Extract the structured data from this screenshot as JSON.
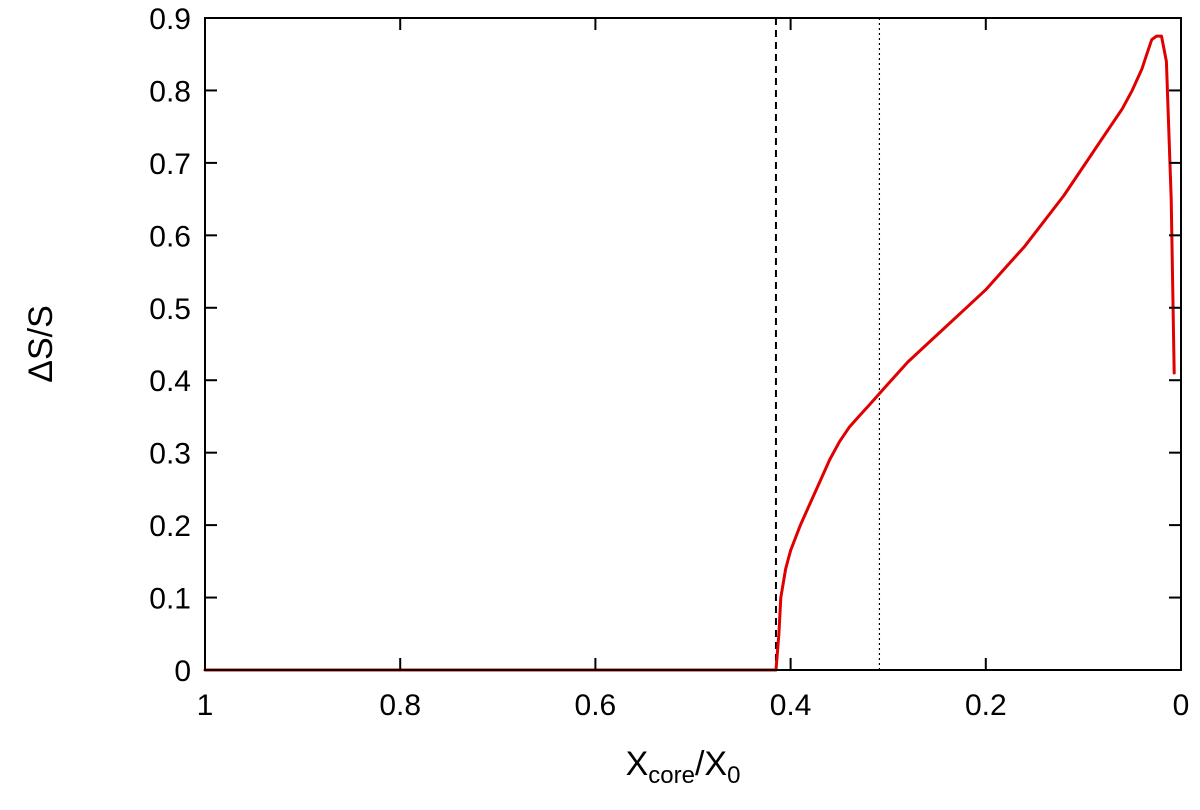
{
  "chart_data": {
    "type": "line",
    "xlabel": "X_core/X_0",
    "xlabel_parts": {
      "main": "X",
      "sub": "core",
      "sep": "/X",
      "sub2": "0"
    },
    "ylabel": "ΔS/S",
    "xlim": [
      1,
      0
    ],
    "ylim": [
      0,
      0.9
    ],
    "x_reversed": true,
    "grid": false,
    "xticks": [
      1,
      0.8,
      0.6,
      0.4,
      0.2,
      0
    ],
    "xtick_labels": [
      "1",
      "0.8",
      "0.6",
      "0.4",
      "0.2",
      "0"
    ],
    "yticks": [
      0,
      0.1,
      0.2,
      0.3,
      0.4,
      0.5,
      0.6,
      0.7,
      0.8,
      0.9
    ],
    "ytick_labels": [
      "0",
      "0.1",
      "0.2",
      "0.3",
      "0.4",
      "0.5",
      "0.6",
      "0.7",
      "0.8",
      "0.9"
    ],
    "vlines": [
      {
        "x": 0.415,
        "style": "dashed",
        "color": "#000000"
      },
      {
        "x": 0.309,
        "style": "dotted",
        "color": "#000000"
      }
    ],
    "series": [
      {
        "color": "#e00000",
        "x": [
          1.0,
          0.9,
          0.8,
          0.7,
          0.6,
          0.5,
          0.42,
          0.415,
          0.412,
          0.41,
          0.405,
          0.4,
          0.39,
          0.38,
          0.37,
          0.36,
          0.35,
          0.34,
          0.33,
          0.32,
          0.31,
          0.3,
          0.28,
          0.26,
          0.24,
          0.22,
          0.2,
          0.18,
          0.16,
          0.14,
          0.12,
          0.1,
          0.08,
          0.06,
          0.05,
          0.04,
          0.035,
          0.03,
          0.025,
          0.02,
          0.015,
          0.01,
          0.007
        ],
        "y": [
          0.0,
          0.0,
          0.0,
          0.0,
          0.0,
          0.0,
          0.0,
          0.0,
          0.05,
          0.1,
          0.14,
          0.165,
          0.2,
          0.23,
          0.26,
          0.29,
          0.315,
          0.335,
          0.35,
          0.365,
          0.38,
          0.395,
          0.425,
          0.45,
          0.475,
          0.5,
          0.525,
          0.555,
          0.585,
          0.62,
          0.655,
          0.695,
          0.735,
          0.775,
          0.8,
          0.83,
          0.85,
          0.87,
          0.875,
          0.875,
          0.84,
          0.65,
          0.41
        ]
      }
    ]
  }
}
